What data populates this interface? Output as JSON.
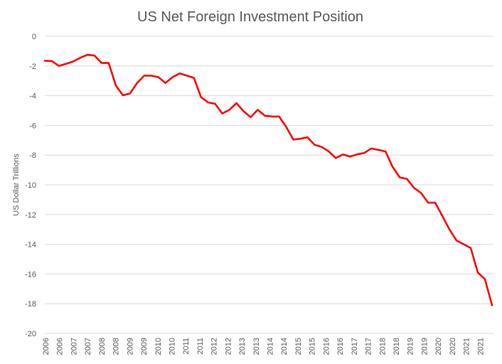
{
  "chart_data": {
    "type": "line",
    "title": "US Net Foreign Investment Position",
    "xlabel": "",
    "ylabel": "US Dollar Trillions",
    "ylim": [
      -20,
      0
    ],
    "yticks": [
      0,
      -2,
      -4,
      -6,
      -8,
      -10,
      -12,
      -14,
      -16,
      -18,
      -20
    ],
    "xtick_labels": [
      "2006",
      "2006",
      "2007",
      "2007",
      "2008",
      "2008",
      "2009",
      "2009",
      "2010",
      "2010",
      "2011",
      "2011",
      "2012",
      "2012",
      "2013",
      "2013",
      "2014",
      "2014",
      "2015",
      "2015",
      "2016",
      "2016",
      "2017",
      "2017",
      "2018",
      "2018",
      "2019",
      "2019",
      "2020",
      "2020",
      "2021",
      "2021"
    ],
    "grid": "horizontal",
    "legend": "none",
    "colors": {
      "series": "#ff0000",
      "grid": "#d9d9d9",
      "text": "#595959"
    },
    "series": [
      {
        "values": [
          -1.65,
          -1.67,
          -2.0,
          -1.85,
          -1.7,
          -1.45,
          -1.25,
          -1.3,
          -1.8,
          -1.8,
          -3.3,
          -3.97,
          -3.85,
          -3.15,
          -2.65,
          -2.65,
          -2.75,
          -3.15,
          -2.75,
          -2.5,
          -2.65,
          -2.8,
          -4.1,
          -4.45,
          -4.55,
          -5.2,
          -4.95,
          -4.5,
          -5.05,
          -5.45,
          -4.95,
          -5.35,
          -5.4,
          -5.4,
          -6.1,
          -6.95,
          -6.9,
          -6.8,
          -7.3,
          -7.45,
          -7.75,
          -8.2,
          -7.95,
          -8.1,
          -7.95,
          -7.85,
          -7.55,
          -7.65,
          -7.75,
          -8.8,
          -9.5,
          -9.6,
          -10.2,
          -10.55,
          -11.2,
          -11.2,
          -12.1,
          -13.0,
          -13.75,
          -14.0,
          -14.25,
          -15.9,
          -16.35,
          -18.1
        ]
      }
    ]
  }
}
